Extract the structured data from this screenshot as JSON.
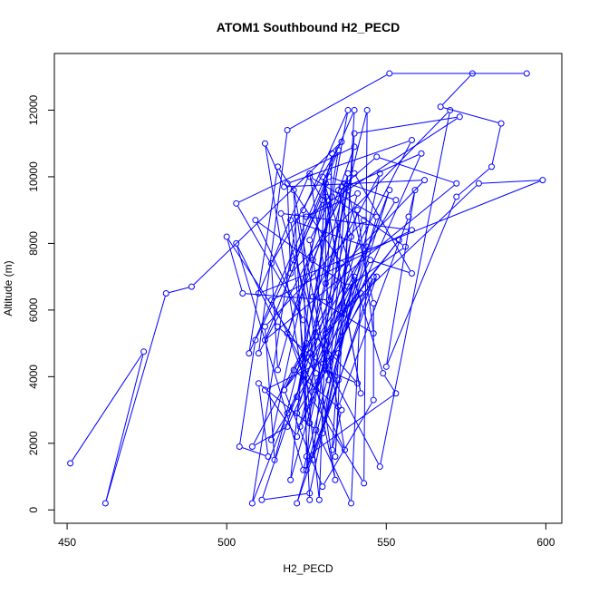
{
  "chart_data": {
    "type": "line",
    "title": "ATOM1 Southbound H2_PECD",
    "xlabel": "H2_PECD",
    "ylabel": "Altitude (m)",
    "xlim": [
      446,
      605
    ],
    "ylim": [
      -400,
      13700
    ],
    "x_ticks": [
      450,
      500,
      550,
      600
    ],
    "y_ticks": [
      0,
      2000,
      4000,
      6000,
      8000,
      10000,
      12000
    ],
    "grid": false,
    "legend": "none",
    "line_color": "#0000ff",
    "marker": "open-circle",
    "series": [
      {
        "points": [
          [
            451,
            1400
          ],
          [
            474,
            4750
          ],
          [
            462,
            200
          ],
          [
            481,
            6500
          ],
          [
            489,
            6700
          ],
          [
            536,
            11050
          ],
          [
            514,
            7400
          ],
          [
            516,
            4200
          ],
          [
            531,
            9400
          ],
          [
            542,
            3500
          ],
          [
            530,
            10000
          ],
          [
            549,
            4100
          ],
          [
            553,
            3500
          ],
          [
            525,
            1600
          ],
          [
            524,
            9000
          ],
          [
            538,
            12000
          ],
          [
            522,
            3400
          ],
          [
            544,
            12000
          ],
          [
            543,
            800
          ],
          [
            527,
            3300
          ],
          [
            519,
            5300
          ],
          [
            540,
            10900
          ],
          [
            503,
            9200
          ],
          [
            524,
            5700
          ],
          [
            509,
            8700
          ],
          [
            538,
            6700
          ],
          [
            556,
            7900
          ],
          [
            533,
            9400
          ],
          [
            526,
            8100
          ],
          [
            537,
            1800
          ],
          [
            514,
            6300
          ],
          [
            558,
            8400
          ],
          [
            517,
            8900
          ],
          [
            532,
            4200
          ],
          [
            548,
            1300
          ],
          [
            570,
            12000
          ],
          [
            520,
            7100
          ],
          [
            519,
            9800
          ],
          [
            558,
            11100
          ],
          [
            518,
            3600
          ],
          [
            554,
            8100
          ],
          [
            531,
            5300
          ],
          [
            528,
            3600
          ],
          [
            546,
            7000
          ],
          [
            527,
            1500
          ],
          [
            536,
            9700
          ],
          [
            547,
            10600
          ],
          [
            572,
            9800
          ],
          [
            512,
            5100
          ],
          [
            532,
            10000
          ],
          [
            553,
            9300
          ],
          [
            521,
            4200
          ],
          [
            536,
            3000
          ],
          [
            533,
            1800
          ],
          [
            540,
            11300
          ],
          [
            573,
            11800
          ],
          [
            525,
            8800
          ],
          [
            541,
            9500
          ],
          [
            522,
            2900
          ],
          [
            547,
            7000
          ],
          [
            525,
            1200
          ],
          [
            531,
            9800
          ],
          [
            531,
            6800
          ],
          [
            562,
            9900
          ],
          [
            518,
            9700
          ],
          [
            512,
            11000
          ],
          [
            526,
            2600
          ],
          [
            541,
            9000
          ],
          [
            546,
            5300
          ],
          [
            527,
            6400
          ],
          [
            548,
            10100
          ],
          [
            530,
            2300
          ],
          [
            539,
            8200
          ],
          [
            535,
            9600
          ],
          [
            561,
            10700
          ],
          [
            523,
            2500
          ],
          [
            551,
            9600
          ],
          [
            535,
            4700
          ],
          [
            512,
            3600
          ],
          [
            522,
            2200
          ],
          [
            536,
            7400
          ],
          [
            516,
            10300
          ],
          [
            507,
            4700
          ],
          [
            540,
            12000
          ],
          [
            534,
            1600
          ],
          [
            535,
            3100
          ],
          [
            557,
            8800
          ],
          [
            559,
            9600
          ],
          [
            550,
            4300
          ],
          [
            572,
            9400
          ],
          [
            583,
            10300
          ],
          [
            586,
            11600
          ],
          [
            567,
            12100
          ],
          [
            577,
            13100
          ],
          [
            594,
            13100
          ],
          [
            551,
            13100
          ],
          [
            519,
            11400
          ],
          [
            510,
            4700
          ],
          [
            540,
            10100
          ],
          [
            558,
            7100
          ],
          [
            545,
            7500
          ],
          [
            536,
            5900
          ],
          [
            579,
            9800
          ],
          [
            599,
            9900
          ],
          [
            510,
            6500
          ],
          [
            526,
            10100
          ],
          [
            532,
            6300
          ],
          [
            505,
            6500
          ],
          [
            500,
            8200
          ],
          [
            528,
            4100
          ],
          [
            520,
            8700
          ],
          [
            544,
            7900
          ],
          [
            519,
            2900
          ],
          [
            508,
            200
          ],
          [
            522,
            8800
          ],
          [
            534,
            900
          ],
          [
            526,
            4700
          ],
          [
            538,
            9600
          ],
          [
            546,
            6200
          ],
          [
            546,
            3300
          ],
          [
            530,
            700
          ],
          [
            518,
            3600
          ],
          [
            540,
            6900
          ],
          [
            519,
            2500
          ],
          [
            508,
            1900
          ],
          [
            525,
            5000
          ],
          [
            535,
            10800
          ],
          [
            521,
            7500
          ],
          [
            529,
            300
          ],
          [
            533,
            10700
          ],
          [
            514,
            2100
          ],
          [
            542,
            6500
          ],
          [
            539,
            200
          ],
          [
            528,
            2400
          ],
          [
            510,
            3800
          ],
          [
            513,
            1600
          ],
          [
            504,
            1900
          ],
          [
            509,
            5100
          ],
          [
            530,
            9300
          ],
          [
            526,
            10000
          ],
          [
            547,
            8800
          ],
          [
            522,
            200
          ],
          [
            535,
            3900
          ],
          [
            516,
            5500
          ],
          [
            503,
            8000
          ],
          [
            524,
            1200
          ],
          [
            540,
            7000
          ],
          [
            526,
            500
          ],
          [
            511,
            300
          ],
          [
            528,
            5200
          ],
          [
            541,
            3800
          ],
          [
            531,
            4200
          ],
          [
            537,
            9800
          ],
          [
            527,
            7500
          ],
          [
            520,
            900
          ],
          [
            543,
            8700
          ],
          [
            512,
            5500
          ],
          [
            515,
            1500
          ],
          [
            538,
            10100
          ],
          [
            532,
            3900
          ],
          [
            521,
            9600
          ],
          [
            526,
            300
          ]
        ]
      }
    ]
  }
}
